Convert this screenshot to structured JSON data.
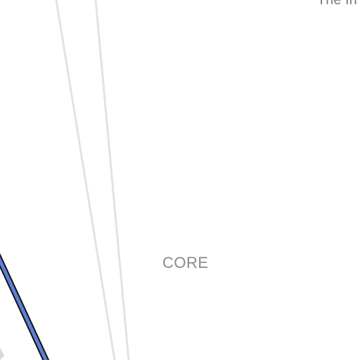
{
  "map": {
    "labels": {
      "district": "CORE",
      "edge_text": "The In"
    },
    "colors": {
      "background": "#ffffff",
      "minor_road": "#e3e3e3",
      "route_fill": "#5b7fd6",
      "route_casing": "#111111",
      "label_text": "#8a8a8a"
    }
  }
}
